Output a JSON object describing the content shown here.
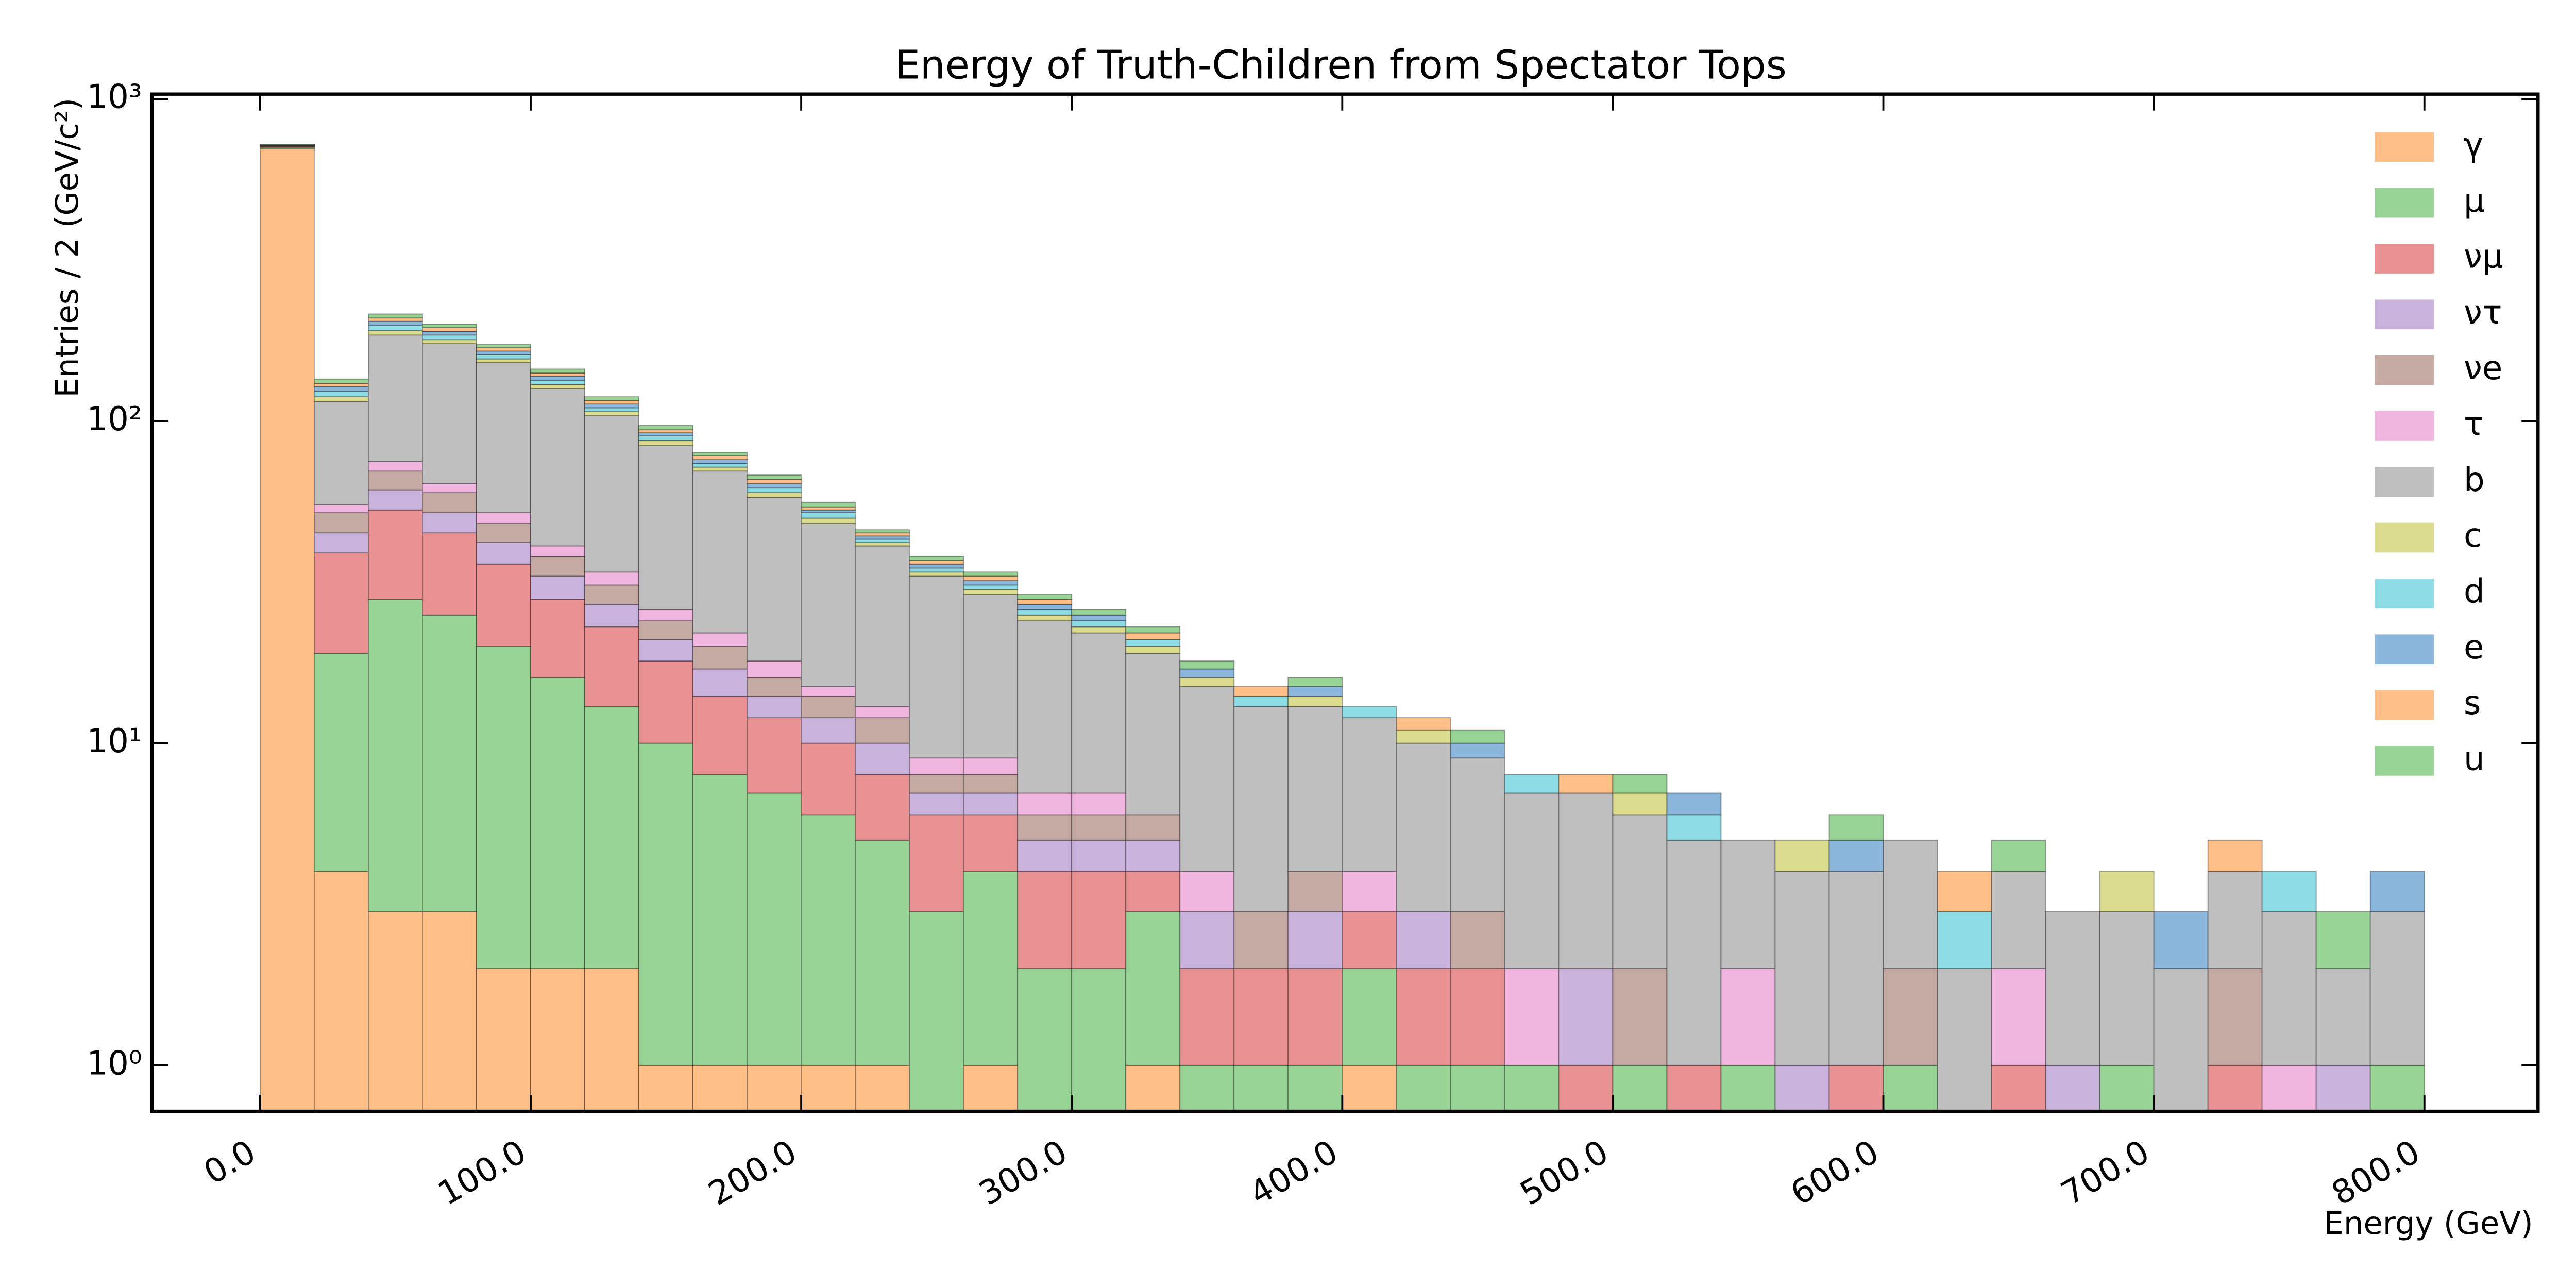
{
  "chart_data": {
    "type": "histogram",
    "stacked": true,
    "title": "Energy of Truth-Children from Spectator Tops",
    "xlabel": "Energy (GeV)",
    "ylabel": "Entries / 2 (GeV/c²)",
    "log_y": true,
    "legend": "upper right",
    "bins": [
      0,
      20,
      40,
      60,
      80,
      100,
      120,
      140,
      160,
      180,
      200,
      220,
      240,
      260,
      280,
      300,
      320,
      340,
      360,
      380,
      400,
      420,
      440,
      460,
      480,
      500,
      520,
      540,
      560,
      580,
      600,
      620,
      640,
      660,
      680,
      700,
      720,
      740,
      760,
      780,
      800
    ],
    "xlim": [
      -40,
      842
    ],
    "ylim": [
      0.72,
      1035
    ],
    "xticks": [
      {
        "value": 0,
        "label": "0.0"
      },
      {
        "value": 100,
        "label": "100.0"
      },
      {
        "value": 200,
        "label": "200.0"
      },
      {
        "value": 300,
        "label": "300.0"
      },
      {
        "value": 400,
        "label": "400.0"
      },
      {
        "value": 500,
        "label": "500.0"
      },
      {
        "value": 600,
        "label": "600.0"
      },
      {
        "value": 700,
        "label": "700.0"
      },
      {
        "value": 800,
        "label": "800.0"
      }
    ],
    "yticks": [
      {
        "value": 1,
        "label": "10⁰"
      },
      {
        "value": 10,
        "label": "10¹"
      },
      {
        "value": 100,
        "label": "10²"
      },
      {
        "value": 1000,
        "label": "10³"
      }
    ],
    "series": [
      {
        "name": "γ",
        "color": "#ffbf86",
        "values": [
          700,
          4,
          3,
          3,
          2,
          2,
          2,
          1,
          1,
          1,
          1,
          1,
          0,
          1,
          0,
          0,
          1,
          0,
          0,
          0,
          1,
          0,
          0,
          0,
          0,
          0,
          0,
          0,
          0,
          0,
          0,
          0,
          0,
          0,
          0,
          0,
          0,
          0,
          0,
          0
        ]
      },
      {
        "name": "μ",
        "color": "#98d496",
        "values": [
          5,
          15,
          25,
          22,
          18,
          14,
          11,
          9,
          7,
          6,
          5,
          4,
          3,
          3,
          2,
          2,
          2,
          1,
          1,
          1,
          1,
          1,
          1,
          1,
          0,
          1,
          0,
          1,
          0,
          0,
          1,
          0,
          0,
          0,
          1,
          0,
          0,
          0,
          0,
          1
        ]
      },
      {
        "name": "νμ",
        "color": "#ea9293",
        "values": [
          5,
          20,
          25,
          20,
          16,
          12,
          10,
          8,
          6,
          5,
          4,
          3,
          3,
          2,
          2,
          2,
          1,
          1,
          1,
          1,
          1,
          1,
          1,
          0,
          1,
          0,
          1,
          0,
          0,
          1,
          0,
          0,
          1,
          0,
          0,
          0,
          1,
          0,
          0,
          0
        ]
      },
      {
        "name": "ντ",
        "color": "#c9b3dd",
        "values": [
          1,
          6,
          8,
          7,
          6,
          5,
          4,
          3,
          3,
          2,
          2,
          2,
          1,
          1,
          1,
          1,
          1,
          1,
          0,
          1,
          0,
          1,
          0,
          0,
          1,
          0,
          0,
          0,
          1,
          0,
          0,
          0,
          0,
          1,
          0,
          0,
          0,
          0,
          1,
          0
        ]
      },
      {
        "name": "νe",
        "color": "#c5a9a3",
        "values": [
          2,
          7,
          9,
          8,
          6,
          5,
          4,
          3,
          3,
          2,
          2,
          2,
          1,
          1,
          1,
          1,
          1,
          0,
          1,
          1,
          0,
          0,
          1,
          0,
          0,
          1,
          0,
          0,
          0,
          0,
          1,
          0,
          0,
          0,
          0,
          0,
          1,
          0,
          0,
          0
        ]
      },
      {
        "name": "τ",
        "color": "#f0b6df",
        "values": [
          1,
          3,
          5,
          4,
          4,
          3,
          3,
          2,
          2,
          2,
          1,
          1,
          1,
          1,
          1,
          1,
          0,
          1,
          0,
          0,
          1,
          0,
          0,
          1,
          0,
          0,
          0,
          1,
          0,
          0,
          0,
          0,
          1,
          0,
          0,
          0,
          0,
          1,
          0,
          0
        ]
      },
      {
        "name": "b",
        "color": "#bfbfbf",
        "values": [
          3,
          60,
          110,
          110,
          100,
          85,
          70,
          58,
          48,
          40,
          33,
          28,
          24,
          20,
          17,
          15,
          13,
          11,
          10,
          9,
          8,
          7,
          6,
          5,
          5,
          4,
          4,
          3,
          3,
          3,
          3,
          2,
          2,
          2,
          2,
          2,
          2,
          2,
          1,
          2
        ]
      },
      {
        "name": "c",
        "color": "#dcdc8f",
        "values": [
          1,
          4,
          6,
          5,
          4,
          4,
          3,
          3,
          2,
          2,
          2,
          1,
          1,
          1,
          1,
          1,
          1,
          1,
          0,
          1,
          0,
          1,
          0,
          0,
          0,
          1,
          0,
          0,
          1,
          0,
          0,
          0,
          0,
          0,
          1,
          0,
          0,
          0,
          0,
          0
        ]
      },
      {
        "name": "d",
        "color": "#8ddce6",
        "values": [
          1,
          5,
          7,
          6,
          5,
          4,
          3,
          3,
          2,
          2,
          2,
          1,
          1,
          1,
          1,
          1,
          1,
          0,
          1,
          0,
          1,
          0,
          0,
          1,
          0,
          0,
          1,
          0,
          0,
          0,
          0,
          1,
          0,
          0,
          0,
          0,
          0,
          1,
          0,
          0
        ]
      },
      {
        "name": "e",
        "color": "#8bb7dc",
        "values": [
          1,
          4,
          6,
          5,
          4,
          4,
          3,
          2,
          2,
          2,
          1,
          1,
          1,
          1,
          1,
          1,
          0,
          1,
          0,
          1,
          0,
          0,
          1,
          0,
          0,
          0,
          1,
          0,
          0,
          1,
          0,
          0,
          0,
          0,
          0,
          1,
          0,
          0,
          0,
          1
        ]
      },
      {
        "name": "s",
        "color": "#ffbf86",
        "values": [
          1,
          3,
          5,
          5,
          4,
          3,
          3,
          2,
          2,
          2,
          1,
          1,
          1,
          1,
          1,
          0,
          1,
          0,
          1,
          0,
          0,
          1,
          0,
          0,
          1,
          0,
          0,
          0,
          0,
          0,
          0,
          1,
          0,
          0,
          0,
          0,
          1,
          0,
          0,
          0
        ]
      },
      {
        "name": "u",
        "color": "#98d496",
        "values": [
          1,
          4,
          6,
          5,
          4,
          4,
          3,
          3,
          2,
          2,
          2,
          1,
          1,
          1,
          1,
          1,
          1,
          1,
          0,
          1,
          0,
          0,
          1,
          0,
          0,
          1,
          0,
          0,
          0,
          1,
          0,
          0,
          1,
          0,
          0,
          0,
          0,
          0,
          1,
          0
        ]
      }
    ]
  }
}
